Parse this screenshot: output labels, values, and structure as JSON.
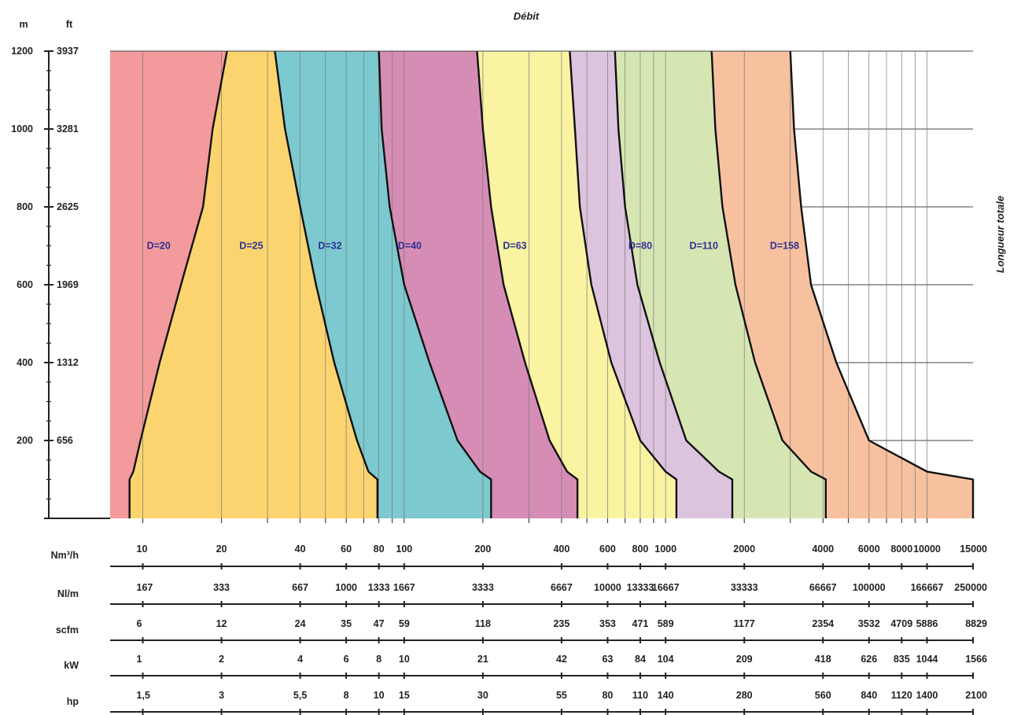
{
  "chart_data": {
    "type": "area",
    "title": "Débit",
    "ylabel": "Longueur totale",
    "y_axes": [
      {
        "unit": "m",
        "ticks": [
          200,
          400,
          600,
          800,
          1000,
          1200
        ]
      },
      {
        "unit": "ft",
        "ticks": [
          "656",
          "1312",
          "1969",
          "2625",
          "3281",
          "3937"
        ]
      }
    ],
    "ylim": [
      0,
      1200
    ],
    "x_scale": "log",
    "xlim_nm3h": [
      7.5,
      15000
    ],
    "x_axes": [
      {
        "unit": "Nm³/h",
        "ticks": [
          "10",
          "20",
          "40",
          "60",
          "80",
          "100",
          "200",
          "400",
          "600",
          "800",
          "1000",
          "2000",
          "4000",
          "6000",
          "8000",
          "10000",
          "15000"
        ]
      },
      {
        "unit": "Nl/m",
        "ticks": [
          "167",
          "333",
          "667",
          "1000",
          "1333",
          "1667",
          "3333",
          "6667",
          "10000",
          "13333",
          "16667",
          "33333",
          "66667",
          "100000",
          "166667",
          "250000"
        ]
      },
      {
        "unit": "scfm",
        "ticks": [
          "6",
          "12",
          "24",
          "35",
          "47",
          "59",
          "118",
          "235",
          "353",
          "471",
          "589",
          "1177",
          "2354",
          "3532",
          "4709",
          "5886",
          "8829"
        ]
      },
      {
        "unit": "kW",
        "ticks": [
          "1",
          "2",
          "4",
          "6",
          "8",
          "10",
          "21",
          "42",
          "63",
          "84",
          "104",
          "209",
          "418",
          "626",
          "835",
          "1044",
          "1566"
        ]
      },
      {
        "unit": "hp",
        "ticks": [
          "1,5",
          "3",
          "5,5",
          "8",
          "10",
          "15",
          "30",
          "55",
          "80",
          "110",
          "140",
          "280",
          "560",
          "840",
          "1120",
          "1400",
          "2100"
        ]
      }
    ],
    "x_tick_values_nm3h": [
      10,
      20,
      40,
      60,
      80,
      100,
      200,
      400,
      600,
      800,
      1000,
      2000,
      4000,
      6000,
      8000,
      10000,
      15000
    ],
    "nl_positions_nm3h": [
      10,
      20,
      40,
      60,
      80,
      100,
      200,
      400,
      600,
      800,
      1000,
      2000,
      4000,
      6000,
      10000,
      15000
    ],
    "grid": true,
    "series": [
      {
        "name": "D=20",
        "color": "#f29a9c",
        "label_at": [
          11.5,
          700
        ]
      },
      {
        "name": "D=25",
        "color": "#fbd46f",
        "label_at": [
          26,
          700
        ]
      },
      {
        "name": "D=32",
        "color": "#7cc9cf",
        "label_at": [
          52,
          700
        ]
      },
      {
        "name": "D=40",
        "color": "#d68db5",
        "label_at": [
          105,
          700
        ]
      },
      {
        "name": "D=63",
        "color": "#f9f3a2",
        "label_at": [
          265,
          700
        ]
      },
      {
        "name": "D=80",
        "color": "#dcc4de",
        "label_at": [
          800,
          700
        ]
      },
      {
        "name": "D=110",
        "color": "#d6e6b3",
        "label_at": [
          1400,
          700
        ]
      },
      {
        "name": "D=158",
        "color": "#f7c19f",
        "label_at": [
          2850,
          700
        ]
      }
    ],
    "boundaries": [
      {
        "between": "D=20/D=25",
        "points": [
          [
            21,
            1200
          ],
          [
            18.5,
            1000
          ],
          [
            17,
            800
          ],
          [
            14,
            600
          ],
          [
            11.6,
            400
          ],
          [
            9.8,
            200
          ],
          [
            9.2,
            120
          ],
          [
            8.9,
            100
          ],
          [
            8.9,
            0
          ]
        ]
      },
      {
        "between": "D=25/D=32",
        "points": [
          [
            32,
            1200
          ],
          [
            35,
            1000
          ],
          [
            40,
            800
          ],
          [
            46,
            600
          ],
          [
            54,
            400
          ],
          [
            66,
            200
          ],
          [
            73,
            120
          ],
          [
            79,
            100
          ],
          [
            79,
            0
          ]
        ]
      },
      {
        "name": "D=32/D=40",
        "points": [
          [
            80,
            1200
          ],
          [
            82,
            1000
          ],
          [
            88,
            800
          ],
          [
            100,
            600
          ],
          [
            125,
            400
          ],
          [
            160,
            200
          ],
          [
            195,
            120
          ],
          [
            215,
            100
          ],
          [
            215,
            0
          ]
        ]
      },
      {
        "between": "D=40/D=63",
        "points": [
          [
            190,
            1200
          ],
          [
            200,
            1000
          ],
          [
            215,
            800
          ],
          [
            240,
            600
          ],
          [
            290,
            400
          ],
          [
            360,
            200
          ],
          [
            420,
            120
          ],
          [
            460,
            100
          ],
          [
            460,
            0
          ]
        ]
      },
      {
        "between": "D=63/D=80",
        "points": [
          [
            430,
            1200
          ],
          [
            450,
            1000
          ],
          [
            470,
            800
          ],
          [
            520,
            600
          ],
          [
            620,
            400
          ],
          [
            800,
            200
          ],
          [
            1000,
            120
          ],
          [
            1100,
            100
          ],
          [
            1100,
            0
          ]
        ]
      },
      {
        "between": "D=80/D=110",
        "points": [
          [
            640,
            1200
          ],
          [
            660,
            1000
          ],
          [
            700,
            800
          ],
          [
            780,
            600
          ],
          [
            950,
            400
          ],
          [
            1200,
            200
          ],
          [
            1600,
            120
          ],
          [
            1800,
            100
          ],
          [
            1800,
            0
          ]
        ]
      },
      {
        "between": "D=110/D=158",
        "points": [
          [
            1500,
            1200
          ],
          [
            1550,
            1000
          ],
          [
            1650,
            800
          ],
          [
            1850,
            600
          ],
          [
            2200,
            400
          ],
          [
            2800,
            200
          ],
          [
            3600,
            120
          ],
          [
            4100,
            100
          ],
          [
            4100,
            0
          ]
        ]
      },
      {
        "between": "D=158/none",
        "points": [
          [
            3000,
            1200
          ],
          [
            3100,
            1000
          ],
          [
            3300,
            800
          ],
          [
            3600,
            600
          ],
          [
            4500,
            400
          ],
          [
            6000,
            200
          ],
          [
            10000,
            120
          ],
          [
            15000,
            100
          ],
          [
            15000,
            0
          ]
        ]
      }
    ],
    "legend": "none"
  }
}
